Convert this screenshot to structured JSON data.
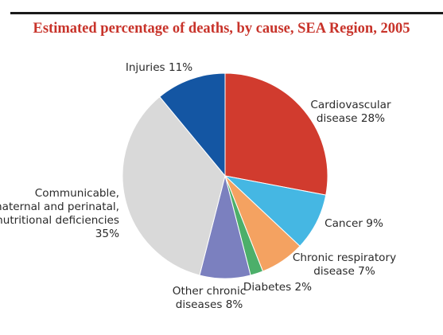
{
  "chart_data": {
    "type": "pie",
    "title": "Estimated percentage of deaths, by cause, SEA Region, 2005",
    "slices": [
      {
        "label": [
          "Cardiovascular",
          "disease 28%"
        ],
        "value": 28,
        "color": "#d13b2e"
      },
      {
        "label": [
          "Cancer 9%"
        ],
        "value": 9,
        "color": "#45b7e3"
      },
      {
        "label": [
          "Chronic respiratory",
          "disease 7%"
        ],
        "value": 7,
        "color": "#f4a261"
      },
      {
        "label": [
          "Diabetes 2%"
        ],
        "value": 2,
        "color": "#4caf6a"
      },
      {
        "label": [
          "Other chronic",
          "diseases 8%"
        ],
        "value": 8,
        "color": "#7b80bf"
      },
      {
        "label": [
          "Communicable,",
          "maternal and perinatal,",
          "nutritional deficiencies",
          "35%"
        ],
        "value": 35,
        "color": "#d9d9d9"
      },
      {
        "label": [
          "Injuries 11%"
        ],
        "value": 11,
        "color": "#1456a3"
      }
    ]
  }
}
